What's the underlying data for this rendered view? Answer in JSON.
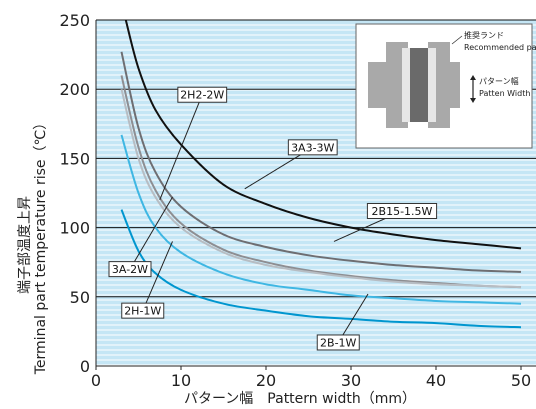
{
  "chart_data": {
    "type": "line",
    "xlabel": "パターン幅　Pattern width（mm）",
    "ylabel_jp": "端子部温度上昇",
    "ylabel_en": "Terminal part temperature rise（℃）",
    "xlim": [
      0,
      52
    ],
    "ylim": [
      0,
      250
    ],
    "xticks": [
      0,
      10,
      20,
      30,
      40,
      50
    ],
    "yticks": [
      0,
      50,
      100,
      150,
      200,
      250
    ],
    "grid": "horizontal",
    "background": "#c5e6f5",
    "series": [
      {
        "name": "3A3-3W",
        "color": "#111111",
        "x": [
          3.5,
          5,
          7,
          10,
          15,
          20,
          25,
          30,
          35,
          40,
          45,
          50
        ],
        "y": [
          250,
          215,
          185,
          160,
          131,
          117,
          107,
          100,
          95,
          91,
          88,
          85
        ]
      },
      {
        "name": "2H2-2W",
        "color": "#6e6e72",
        "x": [
          3,
          5,
          7,
          10,
          15,
          20,
          25,
          30,
          35,
          40,
          45,
          50
        ],
        "y": [
          227,
          172,
          140,
          115,
          95,
          86,
          80,
          76,
          73,
          71,
          69,
          68
        ]
      },
      {
        "name": "2B15-1.5W",
        "color": "#8e8e92",
        "x": [
          3,
          5,
          7,
          10,
          15,
          20,
          25,
          30,
          35,
          40,
          45,
          50
        ],
        "y": [
          210,
          158,
          127,
          103,
          84,
          75,
          69,
          65,
          62,
          60,
          58,
          57
        ]
      },
      {
        "name": "3A-2W",
        "color": "#b7bdc3",
        "x": [
          3,
          5,
          7,
          10,
          15,
          20,
          25,
          30,
          35,
          40,
          45,
          50
        ],
        "y": [
          200,
          150,
          122,
          100,
          82,
          73,
          68,
          64,
          61,
          59,
          58,
          57
        ]
      },
      {
        "name": "2H-1W",
        "color": "#3fb7e3",
        "x": [
          3,
          5,
          7,
          10,
          15,
          20,
          25,
          30,
          35,
          40,
          45,
          50
        ],
        "y": [
          167,
          125,
          100,
          82,
          67,
          59,
          55,
          51,
          49,
          47,
          46,
          45
        ]
      },
      {
        "name": "2B-1W",
        "color": "#0096cf",
        "x": [
          3,
          5,
          7,
          10,
          15,
          20,
          25,
          30,
          35,
          40,
          45,
          50
        ],
        "y": [
          113,
          83,
          67,
          55,
          45,
          40,
          36,
          34,
          32,
          31,
          29,
          28
        ]
      }
    ],
    "annotations": [
      {
        "text": "2H2-2W",
        "series": "2H2-2W",
        "x": 7.5,
        "y": 120,
        "label_x": 12.5,
        "label_y": 196
      },
      {
        "text": "3A3-3W",
        "series": "3A3-3W",
        "x": 17.5,
        "y": 128,
        "label_x": 25.5,
        "label_y": 158
      },
      {
        "text": "2B15-1.5W",
        "series": "2B15-1.5W",
        "x": 28,
        "y": 90,
        "label_x": 36,
        "label_y": 112
      },
      {
        "text": "3A-2W",
        "series": "3A-2W",
        "x": 9,
        "y": 122,
        "label_x": 4,
        "label_y": 70
      },
      {
        "text": "2H-1W",
        "series": "2H-1W",
        "x": 9,
        "y": 90,
        "label_x": 5.5,
        "label_y": 40
      },
      {
        "text": "2B-1W",
        "series": "2B-1W",
        "x": 32,
        "y": 52,
        "label_x": 28.5,
        "label_y": 17
      }
    ]
  },
  "inset": {
    "label_jp": "推奨ランド",
    "label_en": "Recommended pad",
    "pattern_jp": "パターン幅",
    "pattern_en": "Patten Width"
  }
}
